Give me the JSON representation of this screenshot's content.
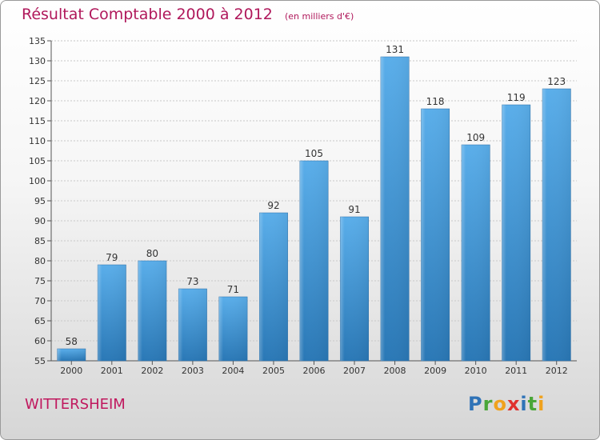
{
  "header": {
    "title": "Résultat Comptable 2000 à 2012",
    "unit": "(en milliers d'€)"
  },
  "footer": {
    "commune": "WITTERSHEIM",
    "logo_letters": [
      "P",
      "r",
      "o",
      "x",
      "i",
      "t",
      "i"
    ],
    "logo_colors": [
      "#2f73b7",
      "#4aa638",
      "#f0a21d",
      "#e0312e",
      "#2f73b7",
      "#4aa638",
      "#f0a21d"
    ]
  },
  "colors": {
    "bar_top": "#5aaeea",
    "bar_bottom": "#2a78b6",
    "title": "#b0185b"
  },
  "chart_data": {
    "type": "bar",
    "title": "Résultat Comptable 2000 à 2012",
    "categories": [
      "2000",
      "2001",
      "2002",
      "2003",
      "2004",
      "2005",
      "2006",
      "2007",
      "2008",
      "2009",
      "2010",
      "2011",
      "2012"
    ],
    "values": [
      58,
      79,
      80,
      73,
      71,
      92,
      105,
      91,
      131,
      118,
      109,
      119,
      123
    ],
    "xlabel": "",
    "ylabel": "",
    "ylim": [
      55,
      135
    ],
    "yticks": [
      55,
      60,
      65,
      70,
      75,
      80,
      85,
      90,
      95,
      100,
      105,
      110,
      115,
      120,
      125,
      130,
      135
    ],
    "grid": true,
    "data_labels": true
  }
}
